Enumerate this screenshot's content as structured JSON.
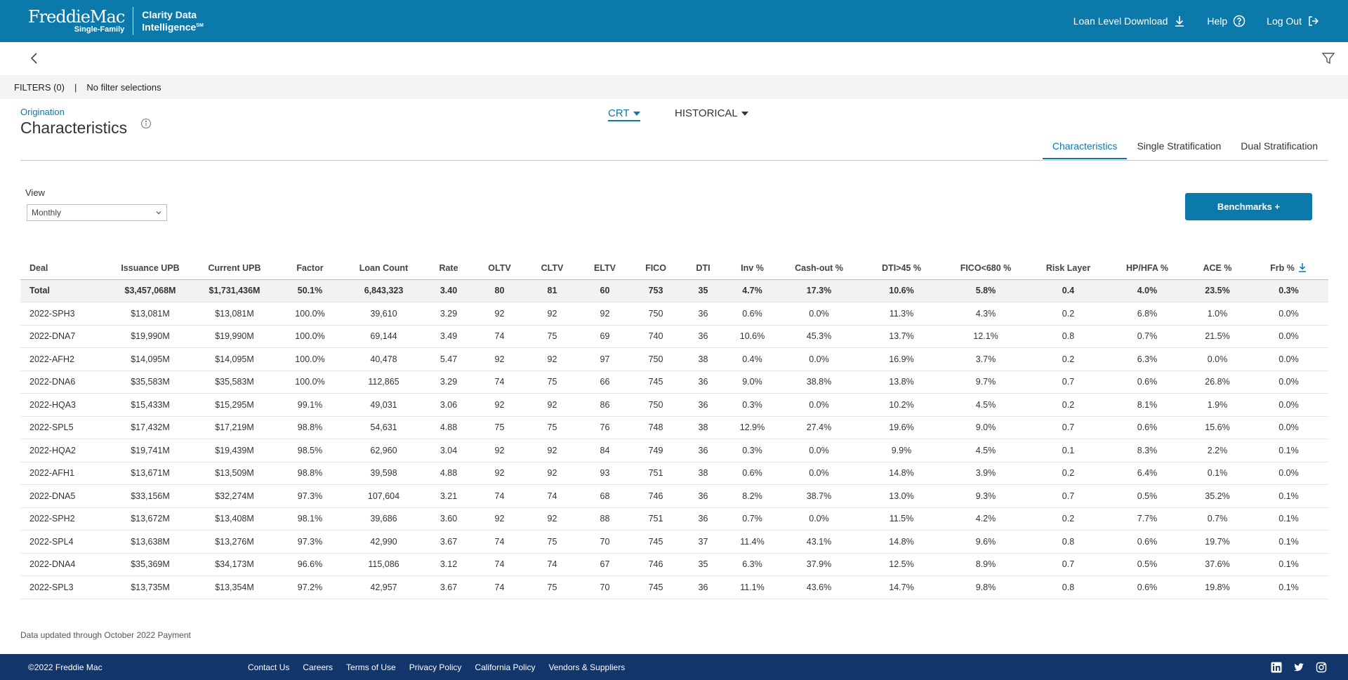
{
  "header": {
    "brand_name": "FreddieMac",
    "brand_sub": "Single-Family",
    "product_line1": "Clarity Data",
    "product_line2": "Intelligence",
    "product_mark": "SM",
    "nav": [
      {
        "label": "Loan Level Download",
        "icon": "download-icon"
      },
      {
        "label": "Help",
        "icon": "help-circle-icon"
      },
      {
        "label": "Log Out",
        "icon": "logout-icon"
      }
    ]
  },
  "filters": {
    "label": "FILTERS (0)",
    "separator": "|",
    "summary": "No filter selections"
  },
  "page": {
    "crumb": "Origination",
    "title": "Characteristics"
  },
  "dropdowns": {
    "program": "CRT",
    "period": "HISTORICAL"
  },
  "tabs": [
    {
      "label": "Characteristics",
      "active": true
    },
    {
      "label": "Single Stratification",
      "active": false
    },
    {
      "label": "Dual Stratification",
      "active": false
    }
  ],
  "view": {
    "label": "View",
    "selected": "Monthly"
  },
  "benchmarks_label": "Benchmarks +",
  "table": {
    "columns": [
      "Deal",
      "Issuance UPB",
      "Current UPB",
      "Factor",
      "Loan Count",
      "Rate",
      "OLTV",
      "CLTV",
      "ELTV",
      "FICO",
      "DTI",
      "Inv %",
      "Cash-out %",
      "DTI>45 %",
      "FICO<680 %",
      "Risk Layer",
      "HP/HFA %",
      "ACE %",
      "Frb %"
    ],
    "total": [
      "Total",
      "$3,457,068M",
      "$1,731,436M",
      "50.1%",
      "6,843,323",
      "3.40",
      "80",
      "81",
      "60",
      "753",
      "35",
      "4.7%",
      "17.3%",
      "10.6%",
      "5.8%",
      "0.4",
      "4.0%",
      "23.5%",
      "0.3%"
    ],
    "rows": [
      [
        "2022-SPH3",
        "$13,081M",
        "$13,081M",
        "100.0%",
        "39,610",
        "3.29",
        "92",
        "92",
        "92",
        "750",
        "36",
        "0.6%",
        "0.0%",
        "11.3%",
        "4.3%",
        "0.2",
        "6.8%",
        "1.0%",
        "0.0%"
      ],
      [
        "2022-DNA7",
        "$19,990M",
        "$19,990M",
        "100.0%",
        "69,144",
        "3.49",
        "74",
        "75",
        "69",
        "740",
        "36",
        "10.6%",
        "45.3%",
        "13.7%",
        "12.1%",
        "0.8",
        "0.7%",
        "21.5%",
        "0.0%"
      ],
      [
        "2022-AFH2",
        "$14,095M",
        "$14,095M",
        "100.0%",
        "40,478",
        "5.47",
        "92",
        "92",
        "97",
        "750",
        "38",
        "0.4%",
        "0.0%",
        "16.9%",
        "3.7%",
        "0.2",
        "6.3%",
        "0.0%",
        "0.0%"
      ],
      [
        "2022-DNA6",
        "$35,583M",
        "$35,583M",
        "100.0%",
        "112,865",
        "3.29",
        "74",
        "75",
        "66",
        "745",
        "36",
        "9.0%",
        "38.8%",
        "13.8%",
        "9.7%",
        "0.7",
        "0.6%",
        "26.8%",
        "0.0%"
      ],
      [
        "2022-HQA3",
        "$15,433M",
        "$15,295M",
        "99.1%",
        "49,031",
        "3.06",
        "92",
        "92",
        "86",
        "750",
        "36",
        "0.3%",
        "0.0%",
        "10.2%",
        "4.5%",
        "0.2",
        "8.1%",
        "1.9%",
        "0.0%"
      ],
      [
        "2022-SPL5",
        "$17,432M",
        "$17,219M",
        "98.8%",
        "54,631",
        "4.88",
        "75",
        "75",
        "76",
        "748",
        "38",
        "12.9%",
        "27.4%",
        "19.6%",
        "9.0%",
        "0.7",
        "0.6%",
        "15.6%",
        "0.0%"
      ],
      [
        "2022-HQA2",
        "$19,741M",
        "$19,439M",
        "98.5%",
        "62,960",
        "3.04",
        "92",
        "92",
        "84",
        "749",
        "36",
        "0.3%",
        "0.0%",
        "9.9%",
        "4.5%",
        "0.1",
        "8.3%",
        "2.2%",
        "0.1%"
      ],
      [
        "2022-AFH1",
        "$13,671M",
        "$13,509M",
        "98.8%",
        "39,598",
        "4.88",
        "92",
        "92",
        "93",
        "751",
        "38",
        "0.6%",
        "0.0%",
        "14.8%",
        "3.9%",
        "0.2",
        "6.4%",
        "0.1%",
        "0.0%"
      ],
      [
        "2022-DNA5",
        "$33,156M",
        "$32,274M",
        "97.3%",
        "107,604",
        "3.21",
        "74",
        "74",
        "68",
        "746",
        "36",
        "8.2%",
        "38.7%",
        "13.0%",
        "9.3%",
        "0.7",
        "0.5%",
        "35.2%",
        "0.1%"
      ],
      [
        "2022-SPH2",
        "$13,672M",
        "$13,408M",
        "98.1%",
        "39,686",
        "3.60",
        "92",
        "92",
        "88",
        "751",
        "36",
        "0.7%",
        "0.0%",
        "11.5%",
        "4.2%",
        "0.2",
        "7.7%",
        "0.7%",
        "0.1%"
      ],
      [
        "2022-SPL4",
        "$13,638M",
        "$13,276M",
        "97.3%",
        "42,990",
        "3.67",
        "74",
        "75",
        "70",
        "745",
        "37",
        "11.4%",
        "43.1%",
        "14.8%",
        "9.6%",
        "0.8",
        "0.6%",
        "19.7%",
        "0.1%"
      ],
      [
        "2022-DNA4",
        "$35,369M",
        "$34,173M",
        "96.6%",
        "115,086",
        "3.12",
        "74",
        "74",
        "67",
        "746",
        "35",
        "6.3%",
        "37.9%",
        "12.5%",
        "8.9%",
        "0.7",
        "0.5%",
        "37.6%",
        "0.1%"
      ],
      [
        "2022-SPL3",
        "$13,735M",
        "$13,354M",
        "97.2%",
        "42,957",
        "3.67",
        "74",
        "75",
        "70",
        "745",
        "36",
        "11.1%",
        "43.6%",
        "14.7%",
        "9.8%",
        "0.8",
        "0.6%",
        "19.8%",
        "0.1%"
      ]
    ]
  },
  "updated_note": "Data updated through October 2022 Payment",
  "footer": {
    "copyright": "©2022 Freddie Mac",
    "links": [
      "Contact Us",
      "Careers",
      "Terms of Use",
      "Privacy Policy",
      "California Policy",
      "Vendors & Suppliers"
    ]
  },
  "colors": {
    "primary": "#0b7aaa",
    "footer": "#12356b"
  }
}
